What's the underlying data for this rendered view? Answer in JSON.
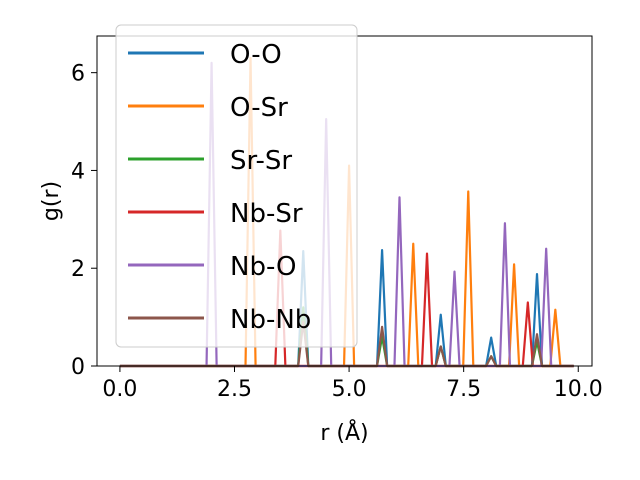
{
  "chart_data": {
    "type": "line",
    "xlabel": "r (Å)",
    "ylabel": "g(r)",
    "xlim": [
      -0.5,
      10.3
    ],
    "ylim": [
      0,
      6.75
    ],
    "xticks": [
      "0.0",
      "2.5",
      "5.0",
      "7.5",
      "10.0"
    ],
    "xtick_values": [
      0,
      2.5,
      5,
      7.5,
      10
    ],
    "yticks": [
      "0",
      "2",
      "4",
      "6"
    ],
    "ytick_values": [
      0,
      2,
      4,
      6
    ],
    "legend_position": "top-left",
    "grid": false,
    "x_range": [
      0,
      9.9
    ],
    "peak_halfwidth": 0.11,
    "series": [
      {
        "name": "O-O",
        "color": "#1f77b4",
        "peaks": [
          [
            4.0,
            2.35
          ],
          [
            5.72,
            2.37
          ],
          [
            7.0,
            1.05
          ],
          [
            8.1,
            0.58
          ],
          [
            9.1,
            1.88
          ]
        ]
      },
      {
        "name": "O-Sr",
        "color": "#ff7f0e",
        "peaks": [
          [
            2.85,
            6.3
          ],
          [
            5.0,
            4.1
          ],
          [
            6.4,
            2.5
          ],
          [
            7.6,
            3.57
          ],
          [
            8.6,
            2.08
          ],
          [
            9.5,
            1.15
          ]
        ]
      },
      {
        "name": "Sr-Sr",
        "color": "#2ca02c",
        "peaks": [
          [
            4.0,
            1.2
          ],
          [
            5.72,
            0.6
          ],
          [
            7.0,
            0.4
          ],
          [
            8.1,
            0.2
          ],
          [
            9.1,
            0.5
          ]
        ]
      },
      {
        "name": "Nb-Sr",
        "color": "#d62728",
        "peaks": [
          [
            3.5,
            2.77
          ],
          [
            6.7,
            2.3
          ],
          [
            8.9,
            1.3
          ]
        ]
      },
      {
        "name": "Nb-O",
        "color": "#9467bd",
        "peaks": [
          [
            2.0,
            6.2
          ],
          [
            4.5,
            5.05
          ],
          [
            6.1,
            3.45
          ],
          [
            7.3,
            1.93
          ],
          [
            8.4,
            2.92
          ],
          [
            9.3,
            2.4
          ]
        ]
      },
      {
        "name": "Nb-Nb",
        "color": "#8c564b",
        "peaks": [
          [
            4.0,
            0.9
          ],
          [
            5.72,
            0.8
          ],
          [
            7.0,
            0.4
          ],
          [
            8.1,
            0.2
          ],
          [
            9.1,
            0.65
          ]
        ]
      }
    ]
  }
}
